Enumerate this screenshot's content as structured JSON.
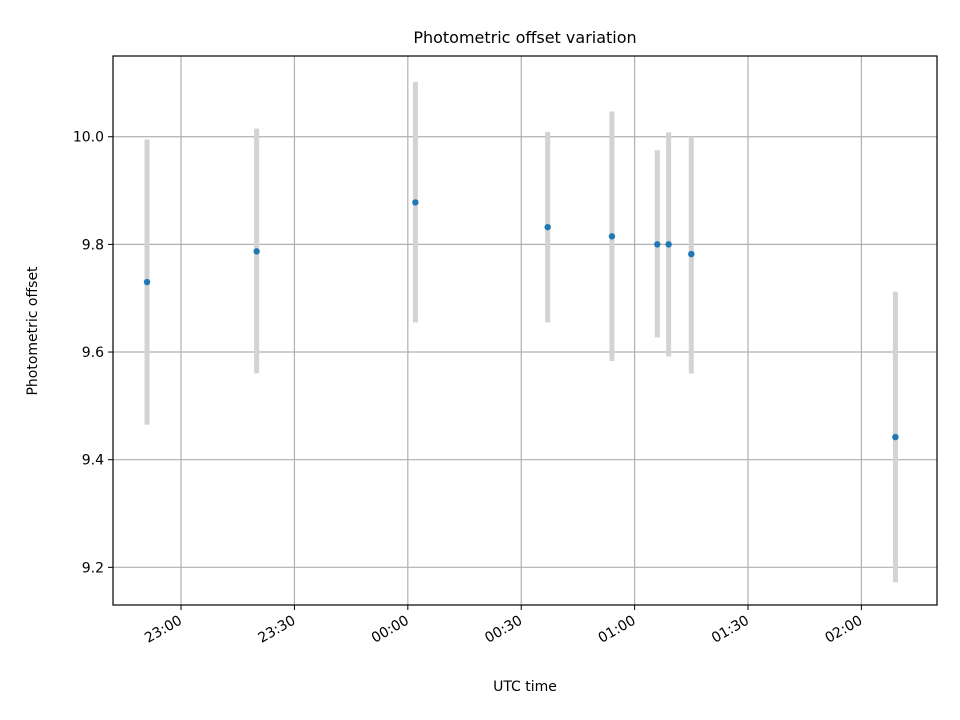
{
  "chart_data": {
    "type": "scatter",
    "title": "Photometric offset variation",
    "xlabel": "UTC time",
    "ylabel": "Photometric offset",
    "x_unit": "UTC time",
    "xlim": [
      "22:42",
      "02:20"
    ],
    "ylim": [
      9.13,
      10.15
    ],
    "grid": true,
    "x_ticks": [
      "23:00",
      "23:30",
      "00:00",
      "00:30",
      "01:00",
      "01:30",
      "02:00"
    ],
    "y_ticks": [
      9.2,
      9.4,
      9.6,
      9.8,
      10.0
    ],
    "y_tick_labels": [
      "9.2",
      "9.4",
      "9.6",
      "9.8",
      "10.0"
    ],
    "points": [
      {
        "x": "22:51",
        "y": 9.73,
        "ymin": 9.465,
        "ymax": 9.995
      },
      {
        "x": "23:20",
        "y": 9.787,
        "ymin": 9.56,
        "ymax": 10.015
      },
      {
        "x": "00:02",
        "y": 9.878,
        "ymin": 9.655,
        "ymax": 10.102
      },
      {
        "x": "00:37",
        "y": 9.832,
        "ymin": 9.655,
        "ymax": 10.009
      },
      {
        "x": "00:54",
        "y": 9.815,
        "ymin": 9.583,
        "ymax": 10.047
      },
      {
        "x": "01:06",
        "y": 9.8,
        "ymin": 9.627,
        "ymax": 9.975
      },
      {
        "x": "01:09",
        "y": 9.8,
        "ymin": 9.592,
        "ymax": 10.008
      },
      {
        "x": "01:15",
        "y": 9.782,
        "ymin": 9.56,
        "ymax": 10.0
      },
      {
        "x": "02:09",
        "y": 9.442,
        "ymin": 9.172,
        "ymax": 9.712
      }
    ],
    "point_color": "#1f77b4",
    "errorbar_color": "#d3d3d3",
    "grid_color": "#b0b0b0"
  }
}
